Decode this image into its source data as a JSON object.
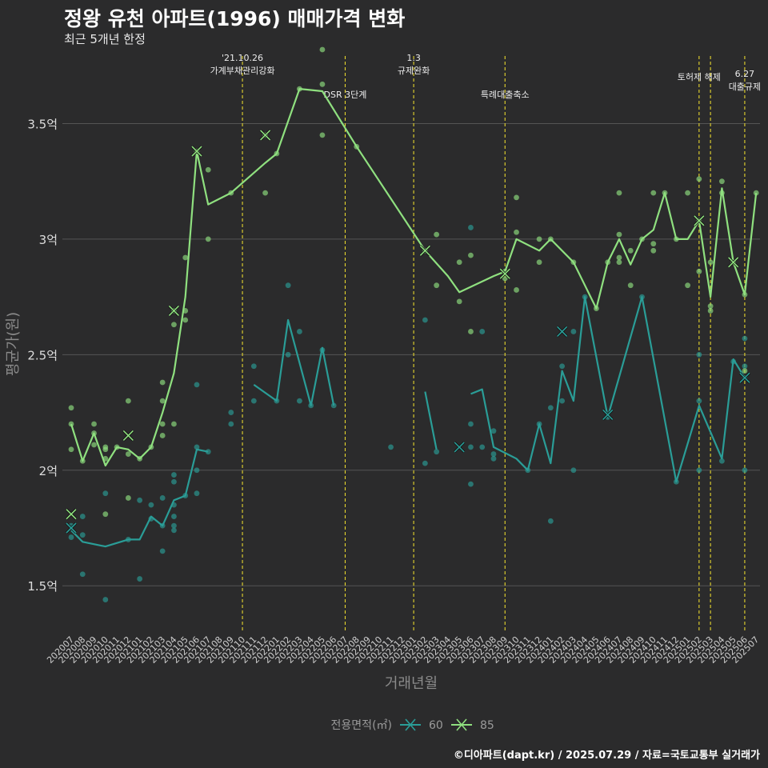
{
  "title": "정왕 유천 아파트(1996) 매매가격 변화",
  "subtitle": "최근 5개년 한정",
  "caption": "©디아파트(dapt.kr) / 2025.07.29 / 자료=국토교통부 실거래가",
  "chart_data": {
    "type": "line",
    "xlabel": "거래년월",
    "ylabel": "평균가(원)",
    "categories": [
      "202007",
      "202008",
      "202009",
      "202010",
      "202011",
      "202012",
      "202101",
      "202102",
      "202103",
      "202104",
      "202105",
      "202106",
      "202107",
      "202108",
      "202109",
      "202110",
      "202111",
      "202112",
      "202201",
      "202202",
      "202203",
      "202204",
      "202205",
      "202206",
      "202207",
      "202208",
      "202209",
      "202210",
      "202211",
      "202212",
      "202301",
      "202302",
      "202303",
      "202304",
      "202305",
      "202306",
      "202307",
      "202308",
      "202309",
      "202310",
      "202311",
      "202312",
      "202401",
      "202402",
      "202403",
      "202404",
      "202405",
      "202406",
      "202407",
      "202408",
      "202409",
      "202410",
      "202411",
      "202412",
      "202501",
      "202502",
      "202503",
      "202504",
      "202505",
      "202506",
      "202507"
    ],
    "yticks": [
      1.5,
      2.0,
      2.5,
      3.0,
      3.5
    ],
    "ytick_labels": [
      "1.5억",
      "2억",
      "2.5억",
      "3억",
      "3.5억"
    ],
    "ylim": [
      1.3,
      3.82
    ],
    "grid": true,
    "legend": {
      "title": "전용면적(㎡)",
      "position": "bottom"
    },
    "colors": {
      "60": "#2a9d97",
      "85": "#8fe07f",
      "event_line": "#e6d62e",
      "grid": "#555555",
      "background": "#2b2b2c"
    },
    "series": [
      {
        "name": "60",
        "segments": [
          [
            [
              0,
              1.74
            ],
            [
              1,
              1.69
            ],
            [
              3,
              1.67
            ],
            [
              5,
              1.7
            ],
            [
              6,
              1.7
            ],
            [
              7,
              1.8
            ],
            [
              8,
              1.76
            ],
            [
              9,
              1.87
            ],
            [
              10,
              1.89
            ],
            [
              11,
              2.09
            ],
            [
              12,
              2.08
            ]
          ],
          [
            [
              16,
              2.37
            ],
            [
              18,
              2.3
            ],
            [
              19,
              2.65
            ],
            [
              21,
              2.28
            ],
            [
              22,
              2.53
            ],
            [
              23,
              2.28
            ]
          ],
          [
            [
              31,
              2.34
            ],
            [
              32,
              2.09
            ]
          ],
          [
            [
              35,
              2.33
            ],
            [
              36,
              2.35
            ],
            [
              37,
              2.1
            ],
            [
              39,
              2.05
            ],
            [
              40,
              2.0
            ],
            [
              41,
              2.2
            ],
            [
              42,
              2.03
            ],
            [
              43,
              2.43
            ],
            [
              44,
              2.3
            ],
            [
              45,
              2.75
            ],
            [
              47,
              2.23
            ],
            [
              50,
              2.75
            ],
            [
              53,
              1.95
            ],
            [
              55,
              2.28
            ],
            [
              57,
              2.05
            ],
            [
              58,
              2.48
            ],
            [
              59,
              2.4
            ]
          ]
        ],
        "markers": [
          [
            0,
            1.75
          ],
          [
            34,
            2.1
          ],
          [
            43,
            2.6
          ],
          [
            47,
            2.24
          ],
          [
            59,
            2.4
          ]
        ],
        "points": [
          [
            0,
            1.71
          ],
          [
            0,
            1.76
          ],
          [
            1,
            1.72
          ],
          [
            1,
            1.55
          ],
          [
            1,
            1.8
          ],
          [
            3,
            1.44
          ],
          [
            3,
            1.9
          ],
          [
            5,
            1.7
          ],
          [
            6,
            1.53
          ],
          [
            6,
            1.87
          ],
          [
            7,
            1.85
          ],
          [
            7,
            1.79
          ],
          [
            8,
            1.65
          ],
          [
            8,
            1.88
          ],
          [
            8,
            1.76
          ],
          [
            9,
            1.74
          ],
          [
            9,
            1.76
          ],
          [
            9,
            1.8
          ],
          [
            9,
            1.85
          ],
          [
            9,
            1.95
          ],
          [
            9,
            1.98
          ],
          [
            10,
            1.89
          ],
          [
            11,
            1.9
          ],
          [
            11,
            2.0
          ],
          [
            11,
            2.1
          ],
          [
            11,
            2.37
          ],
          [
            12,
            2.08
          ],
          [
            14,
            2.2
          ],
          [
            14,
            2.25
          ],
          [
            16,
            2.3
          ],
          [
            16,
            2.45
          ],
          [
            18,
            2.3
          ],
          [
            19,
            2.5
          ],
          [
            19,
            2.8
          ],
          [
            20,
            2.3
          ],
          [
            20,
            2.6
          ],
          [
            21,
            2.28
          ],
          [
            22,
            2.52
          ],
          [
            23,
            2.28
          ],
          [
            28,
            2.1
          ],
          [
            31,
            2.03
          ],
          [
            31,
            2.65
          ],
          [
            32,
            2.08
          ],
          [
            35,
            1.94
          ],
          [
            35,
            2.1
          ],
          [
            35,
            2.2
          ],
          [
            35,
            3.05
          ],
          [
            36,
            2.1
          ],
          [
            36,
            2.6
          ],
          [
            37,
            2.05
          ],
          [
            37,
            2.07
          ],
          [
            37,
            2.17
          ],
          [
            40,
            2.0
          ],
          [
            41,
            2.2
          ],
          [
            42,
            1.78
          ],
          [
            42,
            2.27
          ],
          [
            43,
            2.3
          ],
          [
            43,
            2.45
          ],
          [
            44,
            2.0
          ],
          [
            44,
            2.6
          ],
          [
            45,
            2.75
          ],
          [
            47,
            2.23
          ],
          [
            50,
            2.75
          ],
          [
            53,
            1.95
          ],
          [
            55,
            2.0
          ],
          [
            55,
            2.3
          ],
          [
            55,
            2.5
          ],
          [
            57,
            2.04
          ],
          [
            58,
            2.47
          ],
          [
            59,
            2.0
          ],
          [
            59,
            2.4
          ],
          [
            59,
            2.45
          ],
          [
            59,
            2.57
          ]
        ]
      },
      {
        "name": "85",
        "segments": [
          [
            [
              0,
              2.2
            ],
            [
              1,
              2.04
            ],
            [
              2,
              2.16
            ],
            [
              3,
              2.02
            ],
            [
              4,
              2.1
            ],
            [
              5,
              2.09
            ],
            [
              6,
              2.05
            ],
            [
              7,
              2.1
            ],
            [
              8,
              2.25
            ],
            [
              9,
              2.42
            ],
            [
              10,
              2.75
            ],
            [
              11,
              3.38
            ],
            [
              12,
              3.15
            ],
            [
              14,
              3.2
            ],
            [
              17,
              3.33
            ],
            [
              18,
              3.37
            ],
            [
              20,
              3.65
            ],
            [
              22,
              3.64
            ],
            [
              25,
              3.4
            ],
            [
              31,
              2.95
            ],
            [
              33,
              2.84
            ],
            [
              34,
              2.77
            ],
            [
              37,
              2.84
            ],
            [
              38,
              2.86
            ],
            [
              39,
              3.0
            ],
            [
              41,
              2.95
            ],
            [
              42,
              3.0
            ],
            [
              44,
              2.9
            ],
            [
              46,
              2.7
            ],
            [
              47,
              2.9
            ],
            [
              48,
              3.0
            ],
            [
              49,
              2.89
            ],
            [
              50,
              3.0
            ],
            [
              51,
              3.04
            ],
            [
              52,
              3.2
            ],
            [
              53,
              3.0
            ],
            [
              54,
              3.0
            ],
            [
              55,
              3.08
            ],
            [
              56,
              2.75
            ],
            [
              57,
              3.22
            ],
            [
              58,
              2.9
            ],
            [
              59,
              2.76
            ],
            [
              60,
              3.2
            ]
          ]
        ],
        "markers": [
          [
            0,
            1.81
          ],
          [
            5,
            2.15
          ],
          [
            9,
            2.69
          ],
          [
            11,
            3.38
          ],
          [
            17,
            3.45
          ],
          [
            31,
            2.95
          ],
          [
            38,
            2.85
          ],
          [
            55,
            3.08
          ],
          [
            58,
            2.9
          ]
        ],
        "points": [
          [
            0,
            2.09
          ],
          [
            0,
            2.2
          ],
          [
            0,
            2.27
          ],
          [
            1,
            2.04
          ],
          [
            2,
            2.11
          ],
          [
            2,
            2.16
          ],
          [
            2,
            2.2
          ],
          [
            3,
            1.81
          ],
          [
            3,
            2.05
          ],
          [
            3,
            2.09
          ],
          [
            3,
            2.1
          ],
          [
            4,
            2.1
          ],
          [
            5,
            1.88
          ],
          [
            5,
            2.07
          ],
          [
            5,
            2.3
          ],
          [
            6,
            2.05
          ],
          [
            7,
            2.1
          ],
          [
            8,
            2.15
          ],
          [
            8,
            2.2
          ],
          [
            8,
            2.3
          ],
          [
            8,
            2.38
          ],
          [
            9,
            2.2
          ],
          [
            9,
            2.63
          ],
          [
            9,
            2.69
          ],
          [
            10,
            2.65
          ],
          [
            10,
            2.69
          ],
          [
            10,
            2.92
          ],
          [
            11,
            3.38
          ],
          [
            12,
            3.0
          ],
          [
            12,
            3.3
          ],
          [
            14,
            3.2
          ],
          [
            17,
            3.2
          ],
          [
            17,
            3.45
          ],
          [
            18,
            3.37
          ],
          [
            20,
            3.65
          ],
          [
            22,
            3.45
          ],
          [
            22,
            3.67
          ],
          [
            22,
            3.82
          ],
          [
            25,
            3.4
          ],
          [
            31,
            2.95
          ],
          [
            32,
            2.8
          ],
          [
            32,
            3.02
          ],
          [
            34,
            2.73
          ],
          [
            34,
            2.9
          ],
          [
            35,
            2.6
          ],
          [
            35,
            2.93
          ],
          [
            38,
            2.83
          ],
          [
            38,
            2.86
          ],
          [
            39,
            2.78
          ],
          [
            39,
            3.03
          ],
          [
            39,
            3.18
          ],
          [
            41,
            2.9
          ],
          [
            41,
            3.0
          ],
          [
            42,
            3.0
          ],
          [
            44,
            2.9
          ],
          [
            46,
            2.7
          ],
          [
            47,
            2.9
          ],
          [
            48,
            2.9
          ],
          [
            48,
            2.92
          ],
          [
            48,
            3.02
          ],
          [
            48,
            3.2
          ],
          [
            49,
            2.8
          ],
          [
            49,
            2.95
          ],
          [
            50,
            3.0
          ],
          [
            51,
            2.95
          ],
          [
            51,
            2.98
          ],
          [
            51,
            3.2
          ],
          [
            52,
            3.2
          ],
          [
            53,
            3.0
          ],
          [
            54,
            2.8
          ],
          [
            54,
            3.2
          ],
          [
            55,
            2.86
          ],
          [
            55,
            3.08
          ],
          [
            55,
            3.26
          ],
          [
            56,
            2.69
          ],
          [
            56,
            2.71
          ],
          [
            56,
            2.9
          ],
          [
            57,
            3.2
          ],
          [
            57,
            3.25
          ],
          [
            58,
            2.9
          ],
          [
            59,
            2.76
          ],
          [
            59,
            2.43
          ],
          [
            60,
            3.2
          ]
        ]
      }
    ],
    "events": [
      {
        "x": 15,
        "label": "'21.10.26\n가계부채관리강화",
        "level": 0
      },
      {
        "x": 24,
        "label": "DSR 3단계",
        "level": 1
      },
      {
        "x": 30,
        "label": "1.3\n규제완화",
        "level": 0
      },
      {
        "x": 38,
        "label": "특례대출축소",
        "level": 1
      },
      {
        "x": 55,
        "label": "토허제 해제",
        "level": 2
      },
      {
        "x": 56,
        "label": "",
        "level": 2
      },
      {
        "x": 59,
        "label": "6.27\n대출규제",
        "level": 3
      }
    ]
  }
}
